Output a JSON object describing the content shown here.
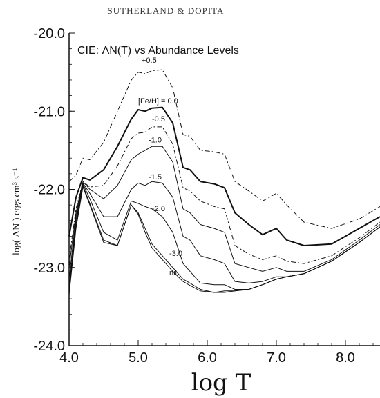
{
  "header": "SUTHERLAND & DOPITA",
  "chart_data": {
    "type": "line",
    "title": "CIE:  ΛN(T) vs Abundance Levels",
    "xlabel": "log T",
    "ylabel": "log( ΛN ) ergs cm³ s⁻¹",
    "xlim": [
      4.0,
      8.5
    ],
    "ylim": [
      -24.0,
      -20.0
    ],
    "xticks": [
      "4.0",
      "5.0",
      "6.0",
      "7.0",
      "8.0"
    ],
    "xtick_values": [
      4.0,
      5.0,
      6.0,
      7.0,
      8.0
    ],
    "yticks": [
      "-20.0",
      "-21.0",
      "-22.0",
      "-23.0",
      "-24.0"
    ],
    "ytick_values": [
      -20.0,
      -21.0,
      -22.0,
      -23.0,
      -24.0
    ],
    "series": [
      {
        "name": "+0.5",
        "style": "dashdot",
        "width": 1.0,
        "x": [
          4.0,
          4.1,
          4.2,
          4.3,
          4.5,
          4.7,
          4.9,
          5.0,
          5.1,
          5.2,
          5.35,
          5.5,
          5.65,
          5.75,
          5.9,
          6.1,
          6.25,
          6.4,
          6.6,
          6.8,
          7.0,
          7.15,
          7.4,
          7.8,
          8.2,
          8.5
        ],
        "y": [
          -21.9,
          -21.82,
          -21.6,
          -21.62,
          -21.4,
          -21.0,
          -20.6,
          -20.5,
          -20.52,
          -20.48,
          -20.47,
          -20.7,
          -21.3,
          -21.32,
          -21.5,
          -21.52,
          -21.55,
          -21.9,
          -22.02,
          -22.15,
          -22.05,
          -22.2,
          -22.42,
          -22.5,
          -22.38,
          -22.22
        ]
      },
      {
        "name": "[Fe/H] = 0.0",
        "style": "solid",
        "width": 2.0,
        "x": [
          4.0,
          4.1,
          4.2,
          4.3,
          4.5,
          4.7,
          4.9,
          5.0,
          5.1,
          5.2,
          5.35,
          5.5,
          5.65,
          5.75,
          5.9,
          6.1,
          6.25,
          6.4,
          6.6,
          6.8,
          7.0,
          7.15,
          7.4,
          7.8,
          8.2,
          8.5
        ],
        "y": [
          -22.6,
          -22.1,
          -21.85,
          -21.88,
          -21.75,
          -21.45,
          -21.1,
          -20.98,
          -21.0,
          -20.96,
          -20.95,
          -21.15,
          -21.72,
          -21.75,
          -21.9,
          -21.93,
          -21.98,
          -22.3,
          -22.45,
          -22.58,
          -22.5,
          -22.65,
          -22.72,
          -22.7,
          -22.5,
          -22.35
        ]
      },
      {
        "name": "-0.5",
        "style": "dashdot",
        "width": 1.0,
        "x": [
          4.0,
          4.1,
          4.2,
          4.3,
          4.5,
          4.7,
          4.9,
          5.0,
          5.1,
          5.2,
          5.35,
          5.5,
          5.65,
          5.75,
          5.9,
          6.1,
          6.25,
          6.4,
          6.6,
          6.8,
          7.0,
          7.15,
          7.4,
          7.8,
          8.2,
          8.5
        ],
        "y": [
          -22.9,
          -22.25,
          -21.9,
          -21.97,
          -21.95,
          -21.7,
          -21.35,
          -21.28,
          -21.27,
          -21.2,
          -21.2,
          -21.42,
          -21.98,
          -22.02,
          -22.15,
          -22.22,
          -22.25,
          -22.72,
          -22.83,
          -22.9,
          -22.85,
          -22.92,
          -22.95,
          -22.85,
          -22.62,
          -22.42
        ]
      },
      {
        "name": "-1.0",
        "style": "solid",
        "width": 1.0,
        "x": [
          4.0,
          4.1,
          4.2,
          4.3,
          4.5,
          4.7,
          4.9,
          5.0,
          5.1,
          5.2,
          5.35,
          5.5,
          5.65,
          5.75,
          5.9,
          6.1,
          6.25,
          6.4,
          6.6,
          6.8,
          7.0,
          7.15,
          7.4,
          7.8,
          8.2,
          8.5
        ],
        "y": [
          -23.0,
          -22.3,
          -21.9,
          -22.0,
          -22.12,
          -21.95,
          -21.62,
          -21.55,
          -21.5,
          -21.45,
          -21.45,
          -21.65,
          -22.25,
          -22.3,
          -22.45,
          -22.5,
          -22.55,
          -22.95,
          -23.0,
          -23.05,
          -23.0,
          -23.05,
          -23.05,
          -22.9,
          -22.65,
          -22.45
        ]
      },
      {
        "name": "-1.5",
        "style": "solid",
        "width": 1.0,
        "x": [
          4.0,
          4.1,
          4.2,
          4.3,
          4.5,
          4.7,
          4.9,
          5.0,
          5.1,
          5.2,
          5.35,
          5.5,
          5.65,
          5.75,
          5.9,
          6.1,
          6.25,
          6.4,
          6.6,
          6.8,
          7.0,
          7.15,
          7.4,
          7.8,
          8.2,
          8.5
        ],
        "y": [
          -23.15,
          -22.35,
          -21.92,
          -22.05,
          -22.35,
          -22.35,
          -22.0,
          -21.92,
          -21.95,
          -21.9,
          -21.92,
          -22.1,
          -22.6,
          -22.65,
          -22.85,
          -22.9,
          -22.95,
          -23.18,
          -23.2,
          -23.18,
          -23.12,
          -23.12,
          -23.08,
          -22.92,
          -22.68,
          -22.48
        ]
      },
      {
        "name": "-2.0",
        "style": "solid",
        "width": 1.0,
        "x": [
          4.0,
          4.1,
          4.2,
          4.3,
          4.5,
          4.7,
          4.9,
          5.0,
          5.1,
          5.2,
          5.35,
          5.5,
          5.65,
          5.75,
          5.9,
          6.1,
          6.25,
          6.4,
          6.6,
          6.8,
          7.0,
          7.15,
          7.4,
          7.8,
          8.2,
          8.5
        ],
        "y": [
          -23.25,
          -22.4,
          -21.93,
          -22.12,
          -22.55,
          -22.65,
          -22.15,
          -22.18,
          -22.22,
          -22.25,
          -22.35,
          -22.55,
          -22.95,
          -23.05,
          -23.2,
          -23.22,
          -23.22,
          -23.28,
          -23.28,
          -23.22,
          -23.15,
          -23.12,
          -23.08,
          -22.92,
          -22.68,
          -22.48
        ]
      },
      {
        "name": "-3.0",
        "style": "solid",
        "width": 1.0,
        "x": [
          4.0,
          4.1,
          4.2,
          4.3,
          4.5,
          4.7,
          4.9,
          5.0,
          5.1,
          5.2,
          5.35,
          5.5,
          5.65,
          5.75,
          5.9,
          6.1,
          6.25,
          6.4,
          6.6,
          6.8,
          7.0,
          7.15,
          7.4,
          7.8,
          8.2,
          8.5
        ],
        "y": [
          -23.3,
          -22.45,
          -21.95,
          -22.18,
          -22.65,
          -22.72,
          -22.2,
          -22.3,
          -22.5,
          -22.7,
          -22.85,
          -23.0,
          -23.15,
          -23.2,
          -23.28,
          -23.32,
          -23.3,
          -23.3,
          -23.28,
          -23.22,
          -23.15,
          -23.12,
          -23.08,
          -22.92,
          -22.68,
          -22.48
        ]
      },
      {
        "name": "nil",
        "style": "solid",
        "width": 1.0,
        "x": [
          4.0,
          4.1,
          4.2,
          4.3,
          4.5,
          4.7,
          4.9,
          5.0,
          5.1,
          5.2,
          5.35,
          5.5,
          5.65,
          5.75,
          5.9,
          6.1,
          6.25,
          6.4,
          6.6,
          6.8,
          7.0,
          7.15,
          7.4,
          7.8,
          8.2,
          8.5
        ],
        "y": [
          -23.35,
          -22.5,
          -21.97,
          -22.2,
          -22.68,
          -22.72,
          -22.2,
          -22.32,
          -22.55,
          -22.75,
          -22.9,
          -23.05,
          -23.18,
          -23.23,
          -23.3,
          -23.32,
          -23.32,
          -23.3,
          -23.28,
          -23.22,
          -23.15,
          -23.12,
          -23.08,
          -22.92,
          -22.68,
          -22.48
        ]
      }
    ],
    "label_anchor": [
      {
        "name": "+0.5",
        "x": 5.05,
        "y": -20.38
      },
      {
        "name": "[Fe/H] = 0.0",
        "x": 5.0,
        "y": -20.9
      },
      {
        "name": "-0.5",
        "x": 5.2,
        "y": -21.13
      },
      {
        "name": "-1.0",
        "x": 5.15,
        "y": -21.4
      },
      {
        "name": "-1.5",
        "x": 5.15,
        "y": -21.87
      },
      {
        "name": "-2.0",
        "x": 5.2,
        "y": -22.28
      },
      {
        "name": "-3.0",
        "x": 5.45,
        "y": -22.85
      },
      {
        "name": "nil",
        "x": 5.45,
        "y": -23.1
      }
    ]
  }
}
